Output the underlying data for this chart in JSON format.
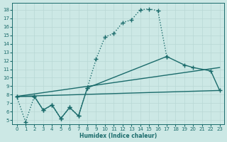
{
  "xlabel": "Humidex (Indice chaleur)",
  "bg_color": "#cce8e5",
  "line_color": "#1a6b6b",
  "grid_color": "#b8d8d5",
  "xlim": [
    -0.5,
    23.5
  ],
  "ylim": [
    4.5,
    18.8
  ],
  "xticks": [
    0,
    1,
    2,
    3,
    4,
    5,
    6,
    7,
    8,
    9,
    10,
    11,
    12,
    13,
    14,
    15,
    16,
    17,
    18,
    19,
    20,
    21,
    22,
    23
  ],
  "yticks": [
    5,
    6,
    7,
    8,
    9,
    10,
    11,
    12,
    13,
    14,
    15,
    16,
    17,
    18
  ],
  "series1_x": [
    0,
    1,
    2,
    3,
    4,
    5,
    6,
    7,
    8,
    9,
    10,
    11,
    12,
    13,
    14,
    15,
    16,
    17
  ],
  "series1_y": [
    7.8,
    4.8,
    7.8,
    6.2,
    6.8,
    5.2,
    6.5,
    5.5,
    8.8,
    12.2,
    14.8,
    15.2,
    16.5,
    16.8,
    18.0,
    18.1,
    17.9,
    12.5
  ],
  "series2_x": [
    0,
    2,
    3,
    4,
    5,
    6,
    7,
    8,
    17,
    19,
    20,
    22,
    23
  ],
  "series2_y": [
    7.8,
    7.8,
    6.2,
    6.8,
    5.2,
    6.5,
    5.5,
    8.8,
    12.5,
    11.5,
    11.2,
    10.8,
    8.5
  ],
  "series3_x": [
    0,
    23
  ],
  "series3_y": [
    7.8,
    11.2
  ],
  "series4_x": [
    0,
    23
  ],
  "series4_y": [
    7.8,
    8.5
  ]
}
